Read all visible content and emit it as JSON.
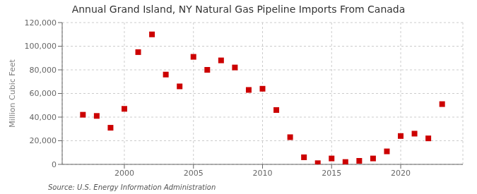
{
  "chart_data": {
    "type": "scatter",
    "title": "Annual Grand Island, NY Natural Gas Pipeline Imports From Canada",
    "ylabel": "Million Cubic Feet",
    "annotations": [
      "Source: U.S. Energy Information Administration"
    ],
    "x": [
      1997,
      1998,
      1999,
      2000,
      2001,
      2002,
      2003,
      2004,
      2005,
      2006,
      2007,
      2008,
      2009,
      2010,
      2011,
      2012,
      2013,
      2014,
      2015,
      2016,
      2017,
      2018,
      2019,
      2020,
      2021,
      2022,
      2023
    ],
    "values": [
      42000,
      41000,
      31000,
      47000,
      95000,
      110000,
      76000,
      66000,
      91000,
      80000,
      88000,
      82000,
      63000,
      64000,
      46000,
      23000,
      6000,
      1000,
      5000,
      2000,
      3000,
      5000,
      11000,
      24000,
      26000,
      22000,
      51000
    ],
    "color": "#cc0000",
    "marker": "square",
    "xlim": [
      1995.5,
      2024.5
    ],
    "xticks": [
      2000,
      2005,
      2010,
      2015,
      2020
    ],
    "ylim": [
      0,
      120000
    ],
    "yticks": [
      0,
      {
        "value": 20000,
        "label": "20,000"
      },
      {
        "value": 40000,
        "label": "40,000"
      },
      {
        "value": 60000,
        "label": "60,000"
      },
      {
        "value": 80000,
        "label": "80,000"
      },
      {
        "value": 100000,
        "label": "100,000"
      },
      {
        "value": 120000,
        "label": "120,000"
      }
    ],
    "grid": true
  }
}
